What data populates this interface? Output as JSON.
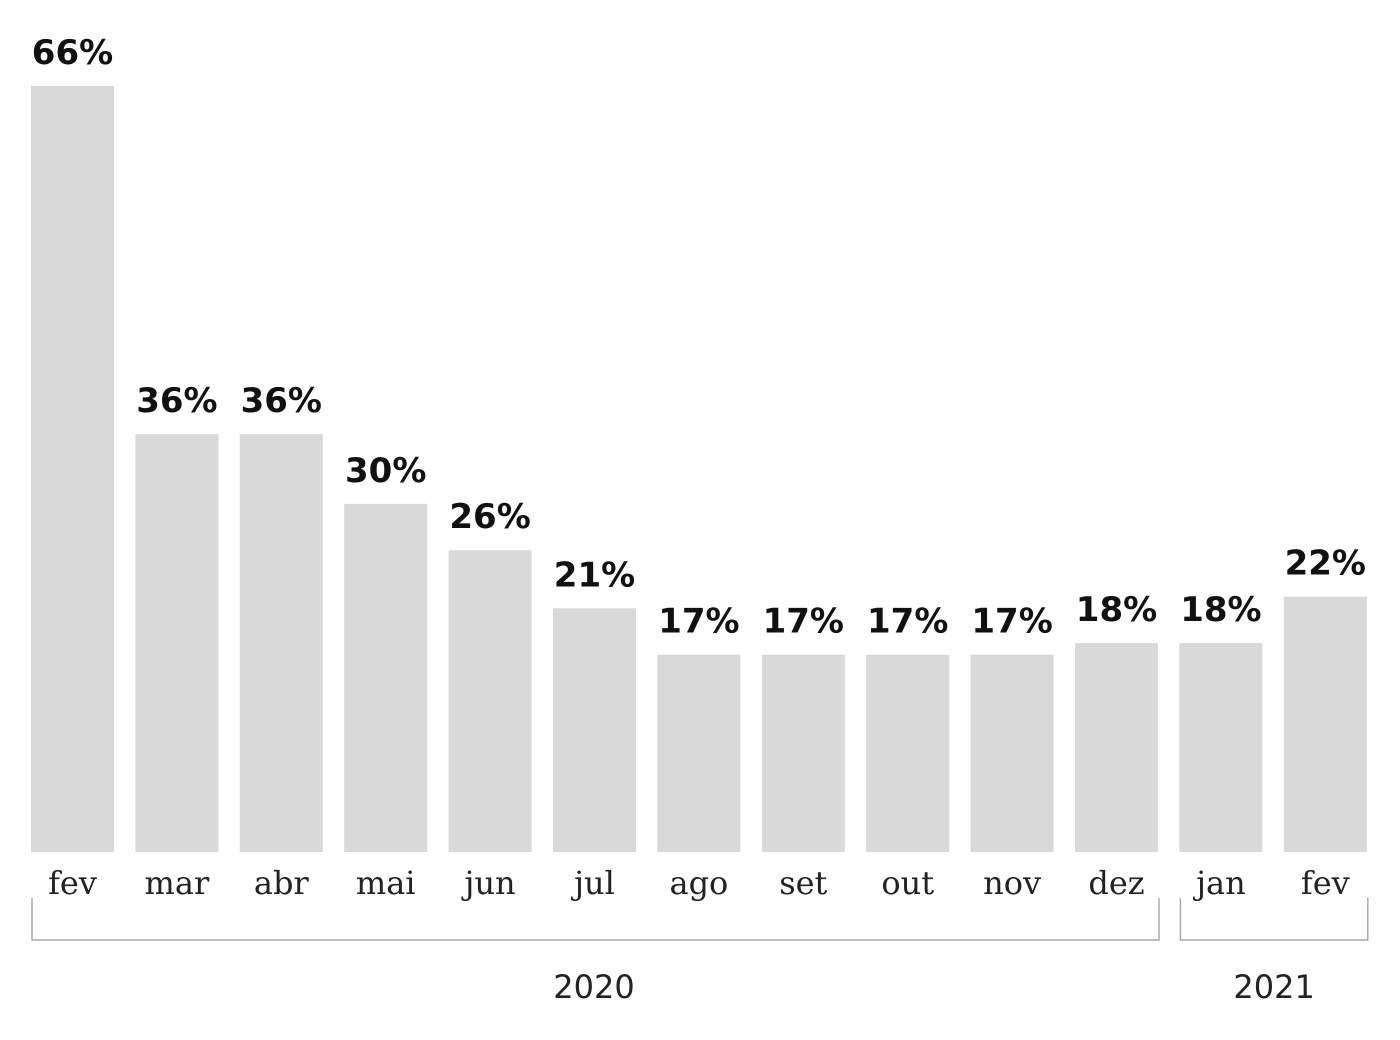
{
  "chart_data": {
    "type": "bar",
    "categories": [
      "fev",
      "mar",
      "abr",
      "mai",
      "jun",
      "jul",
      "ago",
      "set",
      "out",
      "nov",
      "dez",
      "jan",
      "fev"
    ],
    "values": [
      66,
      36,
      36,
      30,
      26,
      21,
      17,
      17,
      17,
      17,
      18,
      18,
      22
    ],
    "value_labels": [
      "66%",
      "36%",
      "36%",
      "30%",
      "26%",
      "21%",
      "17%",
      "17%",
      "17%",
      "17%",
      "18%",
      "18%",
      "22%"
    ],
    "groups": [
      {
        "label": "2020",
        "start": 0,
        "end": 10
      },
      {
        "label": "2021",
        "start": 11,
        "end": 12
      }
    ],
    "title": "",
    "xlabel": "",
    "ylabel": "",
    "ylim": [
      0,
      66
    ],
    "grid": false,
    "legend": "none",
    "colors": {
      "bar": "#d9d9d9",
      "text": "#111111",
      "bracket": "#aaaaaa"
    }
  }
}
